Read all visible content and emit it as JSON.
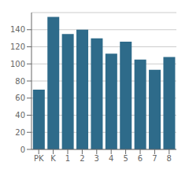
{
  "chart_data": {
    "type": "bar",
    "categories": [
      "PK",
      "K",
      "1",
      "2",
      "3",
      "4",
      "5",
      "6",
      "7",
      "8"
    ],
    "values": [
      70,
      155,
      135,
      140,
      130,
      112,
      126,
      105,
      93,
      108
    ],
    "color": "#2e6b8a",
    "ylim": [
      0,
      160
    ],
    "yticks": [
      0,
      20,
      40,
      60,
      80,
      100,
      120,
      140
    ],
    "grid": true
  }
}
